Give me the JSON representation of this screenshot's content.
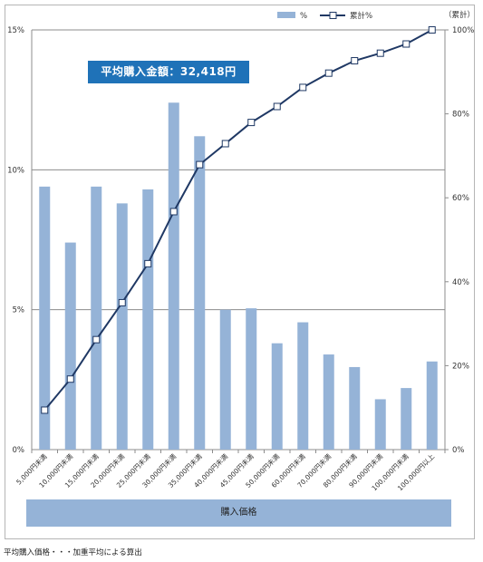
{
  "chart_data": {
    "type": "bar",
    "categories": [
      "5,000円未満",
      "10,000円未満",
      "15,000円未満",
      "20,000円未満",
      "25,000円未満",
      "30,000円未満",
      "35,000円未満",
      "40,000円未満",
      "45,000円未満",
      "50,000円未満",
      "60,000円未満",
      "70,000円未満",
      "80,000円未満",
      "90,000円未満",
      "100,000円未満",
      "100,000円以上"
    ],
    "series": [
      {
        "name": "%",
        "type": "bar",
        "axis": "left",
        "values": [
          9.4,
          7.4,
          9.4,
          8.8,
          9.3,
          12.4,
          11.2,
          5.0,
          5.05,
          3.8,
          4.55,
          3.4,
          2.95,
          1.8,
          2.2,
          3.15
        ]
      },
      {
        "name": "累計%",
        "type": "line",
        "axis": "right",
        "values": [
          9.4,
          16.8,
          26.2,
          35.0,
          44.3,
          56.7,
          67.9,
          72.9,
          77.95,
          81.75,
          86.3,
          89.7,
          92.65,
          94.45,
          96.65,
          100.0
        ]
      }
    ],
    "y_left": {
      "lim": [
        0,
        15
      ],
      "ticks": [
        "0%",
        "5%",
        "10%",
        "15%"
      ]
    },
    "y_right": {
      "lim": [
        0,
        100
      ],
      "ticks": [
        "0%",
        "20%",
        "40%",
        "60%",
        "80%",
        "100%"
      ],
      "label": "（累計）"
    },
    "xlabel": "購入価格",
    "annotation": "平均購入金額：32,418円",
    "legend": [
      "%",
      "累計%"
    ],
    "legend_position": "top-right",
    "grid": "horizontal",
    "colors": {
      "bar": "#95b3d7",
      "line": "#1f3864",
      "annotation_bg": "#1f72b8"
    }
  },
  "footnote": "平均購入価格・・・加重平均による算出"
}
